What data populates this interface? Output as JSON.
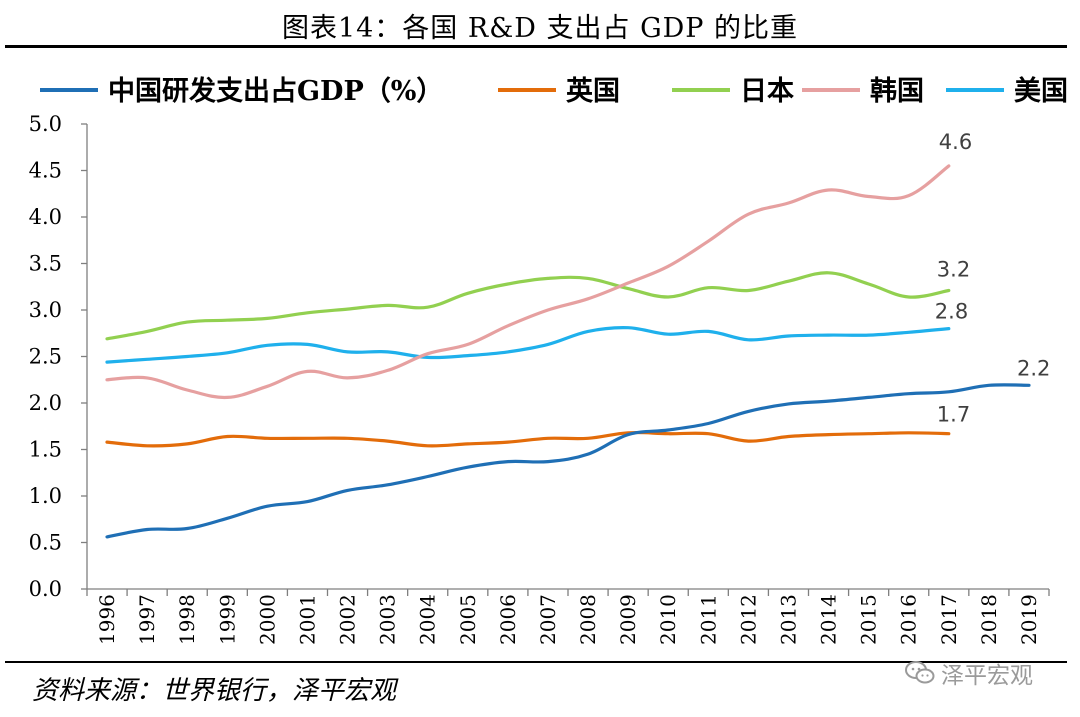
{
  "chart_data": {
    "type": "line",
    "title": "图表14：各国 R&D 支出占 GDP 的比重",
    "xlabel": "",
    "ylabel": "",
    "ylim": [
      0,
      5
    ],
    "yticks": [
      "0.0",
      "0.5",
      "1.0",
      "1.5",
      "2.0",
      "2.5",
      "3.0",
      "3.5",
      "4.0",
      "4.5",
      "5.0"
    ],
    "categories": [
      "1996",
      "1997",
      "1998",
      "1999",
      "2000",
      "2001",
      "2002",
      "2003",
      "2004",
      "2005",
      "2006",
      "2007",
      "2008",
      "2009",
      "2010",
      "2011",
      "2012",
      "2013",
      "2014",
      "2015",
      "2016",
      "2017",
      "2018",
      "2019"
    ],
    "grid": false,
    "legend_position": "top",
    "series": [
      {
        "name": "中国研发支出占GDP（%）",
        "color": "#1f6fb5",
        "end_label": "2.2",
        "values": [
          0.56,
          0.64,
          0.65,
          0.76,
          0.89,
          0.94,
          1.06,
          1.12,
          1.21,
          1.31,
          1.37,
          1.37,
          1.45,
          1.66,
          1.71,
          1.78,
          1.91,
          1.99,
          2.02,
          2.06,
          2.1,
          2.12,
          2.19,
          2.19
        ]
      },
      {
        "name": "英国",
        "color": "#e36c0a",
        "end_label": "1.7",
        "values": [
          1.58,
          1.54,
          1.56,
          1.64,
          1.62,
          1.62,
          1.62,
          1.59,
          1.54,
          1.56,
          1.58,
          1.62,
          1.62,
          1.68,
          1.67,
          1.67,
          1.59,
          1.64,
          1.66,
          1.67,
          1.68,
          1.67,
          null,
          null
        ]
      },
      {
        "name": "日本",
        "color": "#92d050",
        "end_label": "3.2",
        "values": [
          2.69,
          2.77,
          2.87,
          2.89,
          2.91,
          2.97,
          3.01,
          3.05,
          3.03,
          3.18,
          3.28,
          3.34,
          3.34,
          3.23,
          3.14,
          3.24,
          3.21,
          3.31,
          3.4,
          3.28,
          3.14,
          3.21,
          null,
          null
        ]
      },
      {
        "name": "韩国",
        "color": "#e6a0a0",
        "end_label": "4.6",
        "values": [
          2.25,
          2.27,
          2.14,
          2.06,
          2.18,
          2.34,
          2.27,
          2.35,
          2.53,
          2.63,
          2.83,
          3.0,
          3.12,
          3.29,
          3.47,
          3.74,
          4.03,
          4.15,
          4.29,
          4.22,
          4.23,
          4.55,
          null,
          null
        ]
      },
      {
        "name": "美国",
        "color": "#1fb0ec",
        "end_label": "2.8",
        "values": [
          2.44,
          2.47,
          2.5,
          2.54,
          2.62,
          2.63,
          2.55,
          2.55,
          2.49,
          2.51,
          2.55,
          2.63,
          2.77,
          2.81,
          2.74,
          2.77,
          2.68,
          2.72,
          2.73,
          2.73,
          2.76,
          2.8,
          null,
          null
        ]
      }
    ]
  },
  "footer": {
    "source": "资料来源：世界银行，泽平宏观",
    "watermark": "泽平宏观",
    "watermark_icon": "wechat-icon"
  }
}
